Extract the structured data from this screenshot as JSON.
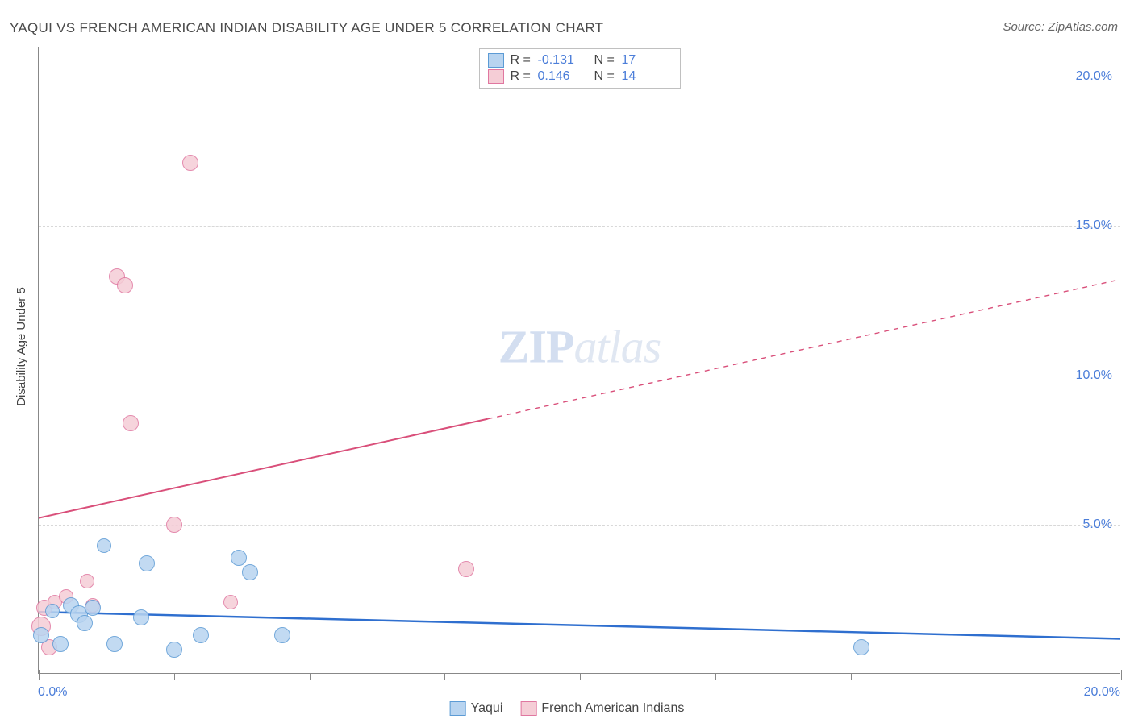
{
  "title": "YAQUI VS FRENCH AMERICAN INDIAN DISABILITY AGE UNDER 5 CORRELATION CHART",
  "source": "Source: ZipAtlas.com",
  "y_axis_label": "Disability Age Under 5",
  "watermark_a": "ZIP",
  "watermark_b": "atlas",
  "chart": {
    "type": "scatter",
    "background_color": "#ffffff",
    "grid_color": "#d8d8d8",
    "axis_color": "#888888",
    "text_color": "#444444",
    "value_color": "#4c7ed9",
    "xlim": [
      0,
      20
    ],
    "ylim": [
      0,
      21
    ],
    "y_ticks": [
      {
        "v": 5.0,
        "label": "5.0%"
      },
      {
        "v": 10.0,
        "label": "10.0%"
      },
      {
        "v": 15.0,
        "label": "15.0%"
      },
      {
        "v": 20.0,
        "label": "20.0%"
      }
    ],
    "x_ticks_major_label": [
      {
        "v": 0.0,
        "label": "0.0%"
      },
      {
        "v": 20.0,
        "label": "20.0%"
      }
    ],
    "x_ticks_minor": [
      2.5,
      5.0,
      7.5,
      10.0,
      12.5,
      15.0,
      17.5
    ],
    "x_ticks_major": [
      0.0,
      20.0
    ]
  },
  "series": {
    "yaqui": {
      "label": "Yaqui",
      "fill": "#b8d4f0",
      "stroke": "#5c9bd5",
      "line_color": "#2f6fcf",
      "line_width": 2.5,
      "R": "-0.131",
      "N": "17",
      "trend": {
        "x1": 0,
        "y1": 2.05,
        "x2": 20,
        "y2": 1.15,
        "solid_until_x": 20
      },
      "points": [
        {
          "x": 0.05,
          "y": 1.3,
          "r": 10
        },
        {
          "x": 0.25,
          "y": 2.1,
          "r": 9
        },
        {
          "x": 0.4,
          "y": 1.0,
          "r": 10
        },
        {
          "x": 0.6,
          "y": 2.3,
          "r": 10
        },
        {
          "x": 0.75,
          "y": 2.0,
          "r": 11
        },
        {
          "x": 0.85,
          "y": 1.7,
          "r": 10
        },
        {
          "x": 1.0,
          "y": 2.2,
          "r": 10
        },
        {
          "x": 1.2,
          "y": 4.3,
          "r": 9
        },
        {
          "x": 1.4,
          "y": 1.0,
          "r": 10
        },
        {
          "x": 1.9,
          "y": 1.9,
          "r": 10
        },
        {
          "x": 2.0,
          "y": 3.7,
          "r": 10
        },
        {
          "x": 2.5,
          "y": 0.8,
          "r": 10
        },
        {
          "x": 3.0,
          "y": 1.3,
          "r": 10
        },
        {
          "x": 3.7,
          "y": 3.9,
          "r": 10
        },
        {
          "x": 3.9,
          "y": 3.4,
          "r": 10
        },
        {
          "x": 4.5,
          "y": 1.3,
          "r": 10
        },
        {
          "x": 15.2,
          "y": 0.9,
          "r": 10
        }
      ]
    },
    "french": {
      "label": "French American Indians",
      "fill": "#f5cdd6",
      "stroke": "#e077a0",
      "line_color": "#d94f7a",
      "line_width": 2,
      "R": "0.146",
      "N": "14",
      "trend": {
        "x1": 0,
        "y1": 5.2,
        "x2": 20,
        "y2": 13.2,
        "solid_until_x": 8.3
      },
      "points": [
        {
          "x": 0.05,
          "y": 1.6,
          "r": 12
        },
        {
          "x": 0.1,
          "y": 2.2,
          "r": 10
        },
        {
          "x": 0.2,
          "y": 0.9,
          "r": 10
        },
        {
          "x": 0.3,
          "y": 2.4,
          "r": 9
        },
        {
          "x": 0.5,
          "y": 2.6,
          "r": 9
        },
        {
          "x": 0.9,
          "y": 3.1,
          "r": 9
        },
        {
          "x": 1.0,
          "y": 2.3,
          "r": 9
        },
        {
          "x": 1.45,
          "y": 13.3,
          "r": 10
        },
        {
          "x": 1.6,
          "y": 13.0,
          "r": 10
        },
        {
          "x": 1.7,
          "y": 8.4,
          "r": 10
        },
        {
          "x": 2.5,
          "y": 5.0,
          "r": 10
        },
        {
          "x": 2.8,
          "y": 17.1,
          "r": 10
        },
        {
          "x": 3.55,
          "y": 2.4,
          "r": 9
        },
        {
          "x": 7.9,
          "y": 3.5,
          "r": 10
        }
      ]
    }
  },
  "stat_legend": {
    "r_label": "R =",
    "n_label": "N ="
  }
}
